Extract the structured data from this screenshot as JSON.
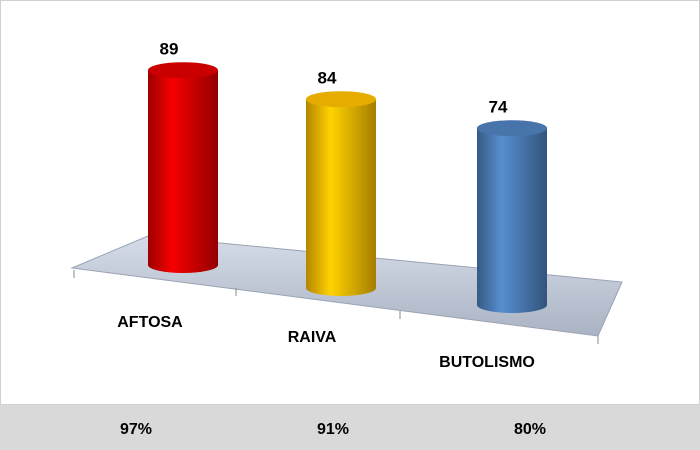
{
  "chart_data": {
    "type": "bar",
    "categories": [
      "AFTOSA",
      "RAIVA",
      "BUTOLISMO"
    ],
    "values": [
      89,
      84,
      74
    ],
    "colors": [
      "#e00000",
      "#ffc000",
      "#4f81bd"
    ],
    "bottom_labels": [
      "97%",
      "91%",
      "80%"
    ]
  }
}
